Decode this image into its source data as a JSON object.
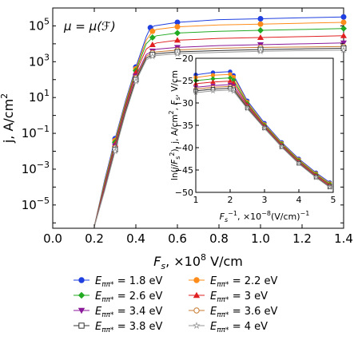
{
  "chart_data": [
    {
      "type": "line",
      "panel": "main",
      "xlabel": "F_s, ×10^8 V/cm",
      "ylabel": "j, A/cm²",
      "annotation": "μ = μ(ℱ)",
      "xlim": [
        0.0,
        1.4
      ],
      "ylim_log10": [
        -6.3,
        6.0
      ],
      "y_scale": "log",
      "grid": false,
      "x_ticks": [
        0.0,
        0.2,
        0.4,
        0.6,
        0.8,
        1.0,
        1.2,
        1.4
      ],
      "x_tick_labels": [
        "0.0",
        "0.2",
        "0.4",
        "0.6",
        "0.8",
        "1.0",
        "1.2",
        "1.4"
      ],
      "y_tick_exponents": [
        -5,
        -3,
        -1,
        1,
        3,
        5
      ],
      "series": [
        {
          "name": "E_ππ* = 1.8 eV",
          "color": "#1f3fe0",
          "marker": "circle-filled",
          "x": [
            0.2,
            0.25,
            0.3,
            0.35,
            0.4,
            0.45,
            0.47,
            0.49,
            0.6,
            0.8,
            1.0,
            1.2,
            1.4
          ],
          "log10_y": [
            -6.2,
            -3.6,
            -1.3,
            0.8,
            2.7,
            4.4,
            4.9,
            5.0,
            5.2,
            5.35,
            5.4,
            5.45,
            5.5
          ]
        },
        {
          "name": "E_ππ* = 2.2 eV",
          "color": "#ff8c1a",
          "marker": "circle-filled",
          "x": [
            0.2,
            0.25,
            0.3,
            0.35,
            0.4,
            0.45,
            0.48,
            0.5,
            0.6,
            0.8,
            1.0,
            1.2,
            1.4
          ],
          "log10_y": [
            -6.2,
            -3.7,
            -1.4,
            0.7,
            2.6,
            4.2,
            4.7,
            4.8,
            4.95,
            5.05,
            5.1,
            5.15,
            5.2
          ]
        },
        {
          "name": "E_ππ* = 2.6 eV",
          "color": "#22aa22",
          "marker": "diamond-filled",
          "x": [
            0.2,
            0.25,
            0.3,
            0.35,
            0.4,
            0.45,
            0.48,
            0.5,
            0.6,
            0.8,
            1.0,
            1.2,
            1.4
          ],
          "log10_y": [
            -6.2,
            -3.8,
            -1.5,
            0.6,
            2.5,
            4.0,
            4.35,
            4.45,
            4.6,
            4.7,
            4.75,
            4.8,
            4.85
          ]
        },
        {
          "name": "E_ππ* = 3 eV",
          "color": "#e02020",
          "marker": "triangle-up-filled",
          "x": [
            0.2,
            0.25,
            0.3,
            0.35,
            0.4,
            0.45,
            0.48,
            0.5,
            0.6,
            0.8,
            1.0,
            1.2,
            1.4
          ],
          "log10_y": [
            -6.2,
            -3.9,
            -1.6,
            0.5,
            2.4,
            3.7,
            3.95,
            4.05,
            4.2,
            4.3,
            4.35,
            4.4,
            4.45
          ]
        },
        {
          "name": "E_ππ* = 3.4 eV",
          "color": "#8a1a9a",
          "marker": "triangle-down-filled",
          "x": [
            0.2,
            0.25,
            0.3,
            0.35,
            0.4,
            0.45,
            0.48,
            0.5,
            0.6,
            0.8,
            1.0,
            1.2,
            1.4
          ],
          "log10_y": [
            -6.2,
            -4.0,
            -1.7,
            0.4,
            2.2,
            3.4,
            3.6,
            3.7,
            3.8,
            3.9,
            3.95,
            4.0,
            4.05
          ]
        },
        {
          "name": "E_ππ* = 3.6 eV",
          "color": "#c87a30",
          "marker": "circle-open",
          "x": [
            0.2,
            0.25,
            0.3,
            0.35,
            0.4,
            0.45,
            0.48,
            0.5,
            0.6,
            0.8,
            1.0,
            1.2,
            1.4
          ],
          "log10_y": [
            -6.2,
            -4.1,
            -1.8,
            0.3,
            2.1,
            3.3,
            3.5,
            3.55,
            3.65,
            3.75,
            3.8,
            3.82,
            3.85
          ]
        },
        {
          "name": "E_ππ* = 3.8 eV",
          "color": "#333333",
          "marker": "square-open",
          "x": [
            0.2,
            0.25,
            0.3,
            0.35,
            0.4,
            0.45,
            0.48,
            0.5,
            0.6,
            0.8,
            1.0,
            1.2,
            1.4
          ],
          "log10_y": [
            -6.2,
            -4.15,
            -1.9,
            0.2,
            2.0,
            3.2,
            3.4,
            3.45,
            3.55,
            3.62,
            3.68,
            3.72,
            3.75
          ]
        },
        {
          "name": "E_ππ* = 4 eV",
          "color": "#999999",
          "marker": "star",
          "x": [
            0.2,
            0.25,
            0.3,
            0.35,
            0.4,
            0.45,
            0.48,
            0.5,
            0.6,
            0.8,
            1.0,
            1.2,
            1.4
          ],
          "log10_y": [
            -6.2,
            -4.2,
            -2.0,
            0.1,
            1.9,
            3.1,
            3.3,
            3.35,
            3.45,
            3.52,
            3.58,
            3.62,
            3.65
          ]
        }
      ]
    },
    {
      "type": "line",
      "panel": "inset",
      "xlabel": "F_s^-1, ×10^-8 (V/cm)^-1",
      "ylabel": "ln(j/F_s²), j, A/cm², F_s, V/cm",
      "xlim": [
        1,
        5
      ],
      "ylim": [
        -50,
        -20
      ],
      "grid": false,
      "x_ticks": [
        1,
        2,
        3,
        4,
        5
      ],
      "y_ticks": [
        -50,
        -45,
        -40,
        -35,
        -30,
        -25,
        -20
      ],
      "series": [
        {
          "name": "E_ππ* = 1.8 eV",
          "color": "#1f3fe0",
          "x": [
            1.0,
            1.5,
            2.0,
            2.1,
            2.5,
            3.0,
            3.5,
            4.0,
            4.5,
            4.9
          ],
          "y": [
            -23.7,
            -23.2,
            -23.0,
            -23.8,
            -29.5,
            -34.5,
            -38.8,
            -42.5,
            -45.6,
            -47.8
          ]
        },
        {
          "name": "E_ππ* = 2.2 eV",
          "color": "#ff8c1a",
          "x": [
            1.0,
            1.5,
            2.0,
            2.1,
            2.5,
            3.0,
            3.5,
            4.0,
            4.5,
            4.9
          ],
          "y": [
            -24.3,
            -23.8,
            -23.6,
            -24.2,
            -29.8,
            -34.8,
            -39.0,
            -42.7,
            -45.8,
            -48.0
          ]
        },
        {
          "name": "E_ππ* = 2.6 eV",
          "color": "#22aa22",
          "x": [
            1.0,
            1.5,
            2.0,
            2.1,
            2.5,
            3.0,
            3.5,
            4.0,
            4.5,
            4.9
          ],
          "y": [
            -25.0,
            -24.6,
            -24.4,
            -24.9,
            -30.1,
            -35.0,
            -39.2,
            -42.9,
            -46.0,
            -48.2
          ]
        },
        {
          "name": "E_ππ* = 3 eV",
          "color": "#e02020",
          "x": [
            1.0,
            1.5,
            2.0,
            2.1,
            2.5,
            3.0,
            3.5,
            4.0,
            4.5,
            4.9
          ],
          "y": [
            -25.7,
            -25.3,
            -25.1,
            -25.5,
            -30.4,
            -35.2,
            -39.4,
            -43.1,
            -46.2,
            -48.4
          ]
        },
        {
          "name": "E_ππ* = 3.4 eV",
          "color": "#8a1a9a",
          "x": [
            1.0,
            1.5,
            2.0,
            2.1,
            2.5,
            3.0,
            3.5,
            4.0,
            4.5,
            4.9
          ],
          "y": [
            -26.5,
            -26.1,
            -25.9,
            -26.2,
            -30.7,
            -35.4,
            -39.6,
            -43.3,
            -46.4,
            -48.6
          ]
        },
        {
          "name": "E_ππ* = 3.6 eV",
          "color": "#c87a30",
          "x": [
            1.0,
            1.5,
            2.0,
            2.1,
            2.5,
            3.0,
            3.5,
            4.0,
            4.5,
            4.9
          ],
          "y": [
            -26.9,
            -26.5,
            -26.3,
            -26.6,
            -30.9,
            -35.5,
            -39.7,
            -43.4,
            -46.5,
            -48.7
          ]
        },
        {
          "name": "E_ππ* = 3.8 eV",
          "color": "#333333",
          "x": [
            1.0,
            1.5,
            2.0,
            2.1,
            2.5,
            3.0,
            3.5,
            4.0,
            4.5,
            4.9
          ],
          "y": [
            -27.3,
            -26.9,
            -26.7,
            -27.0,
            -31.1,
            -35.6,
            -39.8,
            -43.5,
            -46.6,
            -48.8
          ]
        },
        {
          "name": "E_ππ* = 4 eV",
          "color": "#999999",
          "x": [
            1.0,
            1.5,
            2.0,
            2.1,
            2.5,
            3.0,
            3.5,
            4.0,
            4.5,
            4.9
          ],
          "y": [
            -27.7,
            -27.3,
            -27.1,
            -27.4,
            -31.3,
            -35.7,
            -39.9,
            -43.6,
            -46.7,
            -48.9
          ]
        }
      ]
    }
  ]
}
